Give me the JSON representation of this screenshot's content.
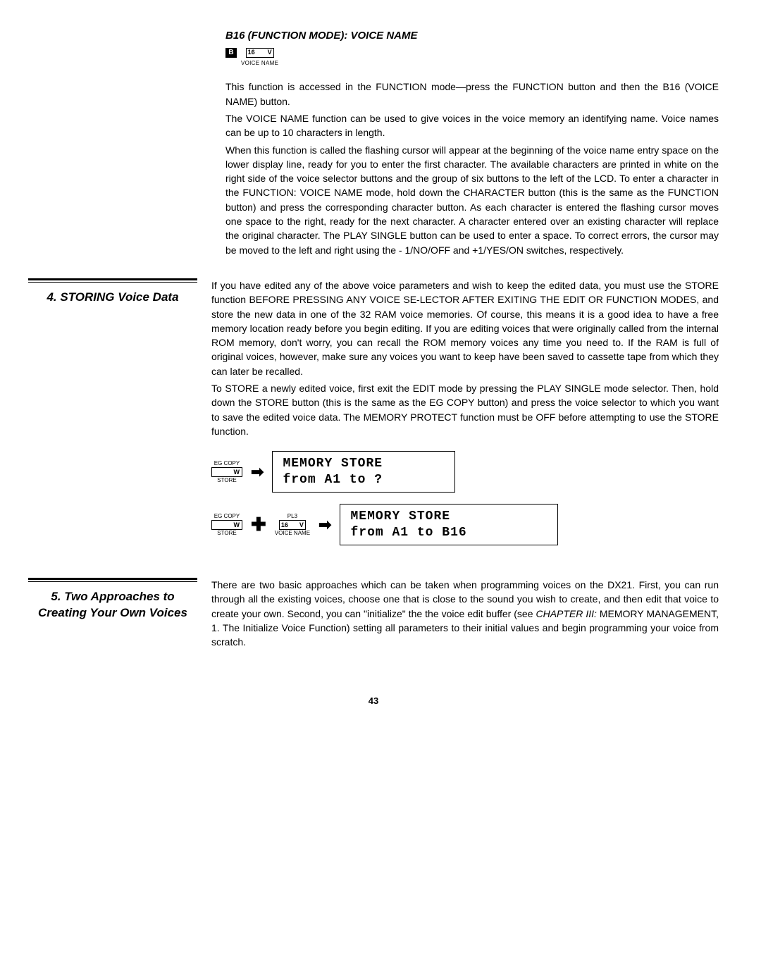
{
  "headingB16": "B16 (FUNCTION MODE): VOICE NAME",
  "buttonB": "B",
  "button16Left": "16",
  "button16Right": "V",
  "voiceName": "VOICE NAME",
  "paraB16_a": "This function is accessed in the FUNCTION mode—press the FUNCTION button and then the B16 (VOICE NAME) button.",
  "paraB16_b": "The VOICE NAME function can be used to give voices in the voice memory an identifying name. Voice names can be up to 10 characters in length.",
  "paraB16_c": "When this function is called the flashing cursor will appear at the beginning of the voice name entry space on the lower display line, ready for you to enter the first character. The available characters are printed in white on the right side of the voice selector buttons and the group of six buttons to the left of the LCD. To enter a character in the FUNCTION: VOICE NAME mode, hold down the CHARACTER button (this is the same as the FUNCTION button) and press the corresponding character button. As each character is entered the flashing cursor moves one space to the right, ready for the next character. A character entered over an existing character will replace the original character. The PLAY SINGLE button can be used to enter a space. To correct errors, the cursor may be moved to the left and right using the - 1/NO/OFF and +1/YES/ON switches, respectively.",
  "section4Title": "4. STORING Voice Data",
  "para4_a": "If you have edited any of the above voice parameters and wish to keep the edited data, you must use the STORE function BEFORE PRESSING ANY VOICE SE-LECTOR AFTER EXITING THE EDIT OR FUNCTION MODES, and store the new data in one of the 32 RAM voice memories. Of course, this means it is a good idea to have a free memory location ready before you begin editing. If you are editing voices that were originally called from the internal ROM memory, don't worry, you can recall the ROM memory voices any time you need to. If the RAM is full of original voices, however, make sure any voices you want to keep have been saved to cassette tape from which they can later be recalled.",
  "para4_b": "To STORE a newly edited voice, first exit the EDIT mode by pressing the PLAY SINGLE mode selector. Then, hold down the STORE button (this is the same as the EG COPY button) and press the voice selector to which you want to save the edited voice data. The MEMORY PROTECT function must be OFF before attempting to use the STORE function.",
  "egCopy": "EG COPY",
  "store": "STORE",
  "wLabel": "W",
  "pl3": "PL3",
  "lcd1_line1": "MEMORY STORE",
  "lcd1_line2": "from A1 to ?",
  "lcd2_line1": "MEMORY STORE",
  "lcd2_line2": "from A1 to B16",
  "section5Title": "5. Two Approaches to Creating Your Own Voices",
  "para5_pre": "There are two basic approaches which can be taken when programming voices on the DX21. First, you can run through all the existing voices, choose one that is close to the sound you wish to create, and then edit that voice to create your own. Second, you can \"initialize\" the the voice edit buffer (see ",
  "para5_chapter": "CHAPTER III:",
  "para5_post": " MEMORY MANAGEMENT, 1. The Initialize Voice Function) setting all parameters to their initial values and begin programming your voice from scratch.",
  "pageNumber": "43"
}
